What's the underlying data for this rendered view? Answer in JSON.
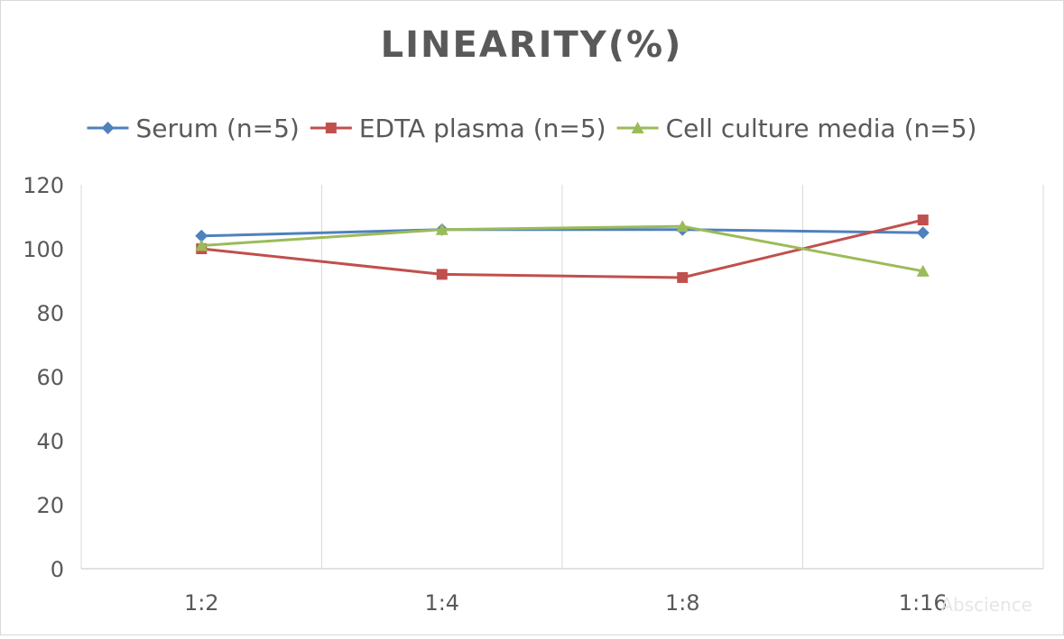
{
  "chart_data": {
    "type": "line",
    "title": "LINEARITY(%)",
    "categories": [
      "1:2",
      "1:4",
      "1:8",
      "1:16"
    ],
    "ylim": [
      0,
      120
    ],
    "yticks": [
      0,
      20,
      40,
      60,
      80,
      100,
      120
    ],
    "grid": "vertical",
    "legend_position": "top",
    "series": [
      {
        "name": "Serum (n=5)",
        "values": [
          104,
          106,
          106,
          105
        ],
        "color": "#4f81bd",
        "marker": "diamond"
      },
      {
        "name": "EDTA plasma (n=5)",
        "values": [
          100,
          92,
          91,
          109
        ],
        "color": "#c0504d",
        "marker": "square"
      },
      {
        "name": "Cell culture media (n=5)",
        "values": [
          101,
          106,
          107,
          93
        ],
        "color": "#9bbb59",
        "marker": "triangle"
      }
    ]
  },
  "watermark": "Abscience"
}
